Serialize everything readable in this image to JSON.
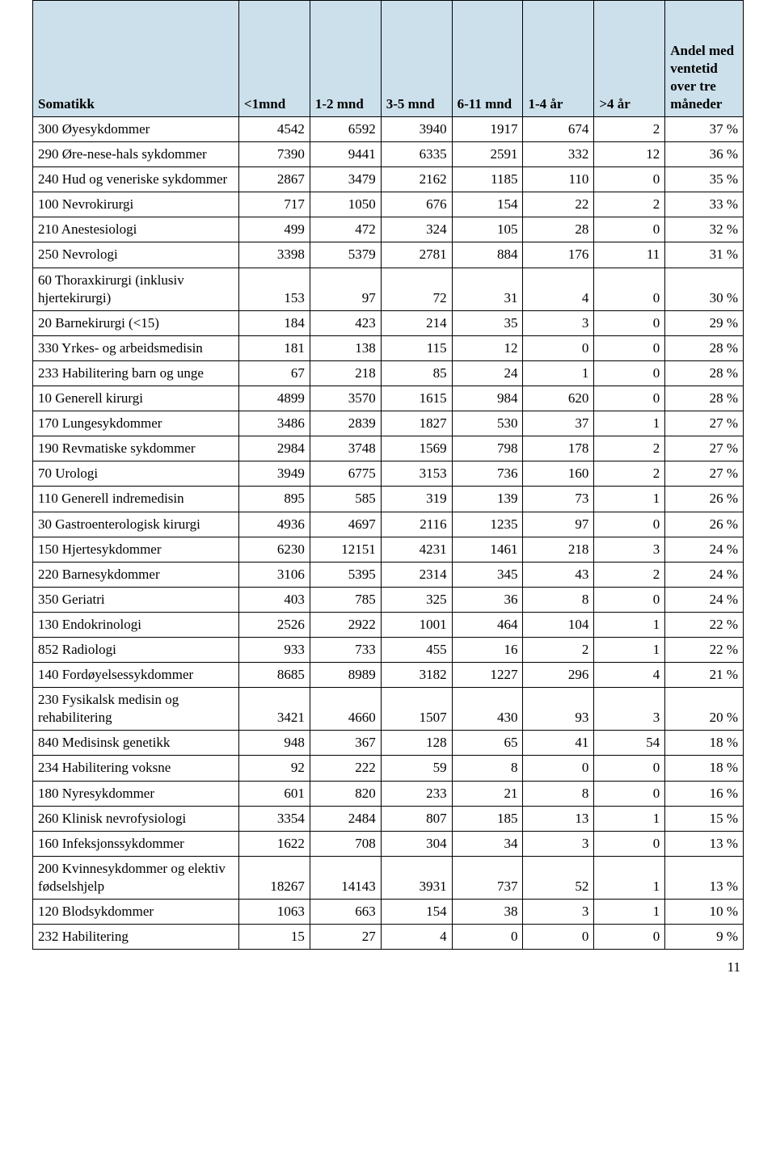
{
  "page_number": "11",
  "table": {
    "header_bg": "#cce0eb",
    "border_color": "#000000",
    "font": "Times New Roman",
    "columns": [
      "Somatikk",
      "<1mnd",
      "1-2 mnd",
      "3-5 mnd",
      "6-11 mnd",
      "1-4 år",
      ">4 år",
      "Andel med ventetid over tre måneder"
    ],
    "rows": [
      [
        "300 Øyesykdommer",
        "4542",
        "6592",
        "3940",
        "1917",
        "674",
        "2",
        "37 %"
      ],
      [
        "290 Øre-nese-hals sykdommer",
        "7390",
        "9441",
        "6335",
        "2591",
        "332",
        "12",
        "36 %"
      ],
      [
        "240 Hud og veneriske sykdommer",
        "2867",
        "3479",
        "2162",
        "1185",
        "110",
        "0",
        "35 %"
      ],
      [
        "100 Nevrokirurgi",
        "717",
        "1050",
        "676",
        "154",
        "22",
        "2",
        "33 %"
      ],
      [
        "210 Anestesiologi",
        "499",
        "472",
        "324",
        "105",
        "28",
        "0",
        "32 %"
      ],
      [
        "250 Nevrologi",
        "3398",
        "5379",
        "2781",
        "884",
        "176",
        "11",
        "31 %"
      ],
      [
        "60 Thoraxkirurgi (inklusiv hjertekirurgi)",
        "153",
        "97",
        "72",
        "31",
        "4",
        "0",
        "30 %"
      ],
      [
        "20 Barnekirurgi (<15)",
        "184",
        "423",
        "214",
        "35",
        "3",
        "0",
        "29 %"
      ],
      [
        "330 Yrkes- og arbeidsmedisin",
        "181",
        "138",
        "115",
        "12",
        "0",
        "0",
        "28 %"
      ],
      [
        "233 Habilitering barn og unge",
        "67",
        "218",
        "85",
        "24",
        "1",
        "0",
        "28 %"
      ],
      [
        "10 Generell kirurgi",
        "4899",
        "3570",
        "1615",
        "984",
        "620",
        "0",
        "28 %"
      ],
      [
        "170 Lungesykdommer",
        "3486",
        "2839",
        "1827",
        "530",
        "37",
        "1",
        "27 %"
      ],
      [
        "190 Revmatiske sykdommer",
        "2984",
        "3748",
        "1569",
        "798",
        "178",
        "2",
        "27 %"
      ],
      [
        "70 Urologi",
        "3949",
        "6775",
        "3153",
        "736",
        "160",
        "2",
        "27 %"
      ],
      [
        "110 Generell indremedisin",
        "895",
        "585",
        "319",
        "139",
        "73",
        "1",
        "26 %"
      ],
      [
        "30 Gastroenterologisk kirurgi",
        "4936",
        "4697",
        "2116",
        "1235",
        "97",
        "0",
        "26 %"
      ],
      [
        "150 Hjertesykdommer",
        "6230",
        "12151",
        "4231",
        "1461",
        "218",
        "3",
        "24 %"
      ],
      [
        "220 Barnesykdommer",
        "3106",
        "5395",
        "2314",
        "345",
        "43",
        "2",
        "24 %"
      ],
      [
        "350 Geriatri",
        "403",
        "785",
        "325",
        "36",
        "8",
        "0",
        "24 %"
      ],
      [
        "130 Endokrinologi",
        "2526",
        "2922",
        "1001",
        "464",
        "104",
        "1",
        "22 %"
      ],
      [
        "852 Radiologi",
        "933",
        "733",
        "455",
        "16",
        "2",
        "1",
        "22 %"
      ],
      [
        "140 Fordøyelsessykdommer",
        "8685",
        "8989",
        "3182",
        "1227",
        "296",
        "4",
        "21 %"
      ],
      [
        "230 Fysikalsk medisin og rehabilitering",
        "3421",
        "4660",
        "1507",
        "430",
        "93",
        "3",
        "20 %"
      ],
      [
        "840 Medisinsk genetikk",
        "948",
        "367",
        "128",
        "65",
        "41",
        "54",
        "18 %"
      ],
      [
        "234 Habilitering voksne",
        "92",
        "222",
        "59",
        "8",
        "0",
        "0",
        "18 %"
      ],
      [
        "180 Nyresykdommer",
        "601",
        "820",
        "233",
        "21",
        "8",
        "0",
        "16 %"
      ],
      [
        "260 Klinisk nevrofysiologi",
        "3354",
        "2484",
        "807",
        "185",
        "13",
        "1",
        "15 %"
      ],
      [
        "160 Infeksjonssykdommer",
        "1622",
        "708",
        "304",
        "34",
        "3",
        "0",
        "13 %"
      ],
      [
        "200 Kvinnesykdommer og elektiv fødselshjelp",
        "18267",
        "14143",
        "3931",
        "737",
        "52",
        "1",
        "13 %"
      ],
      [
        "120 Blodsykdommer",
        "1063",
        "663",
        "154",
        "38",
        "3",
        "1",
        "10 %"
      ],
      [
        "232 Habilitering",
        "15",
        "27",
        "4",
        "0",
        "0",
        "0",
        "9 %"
      ]
    ]
  }
}
